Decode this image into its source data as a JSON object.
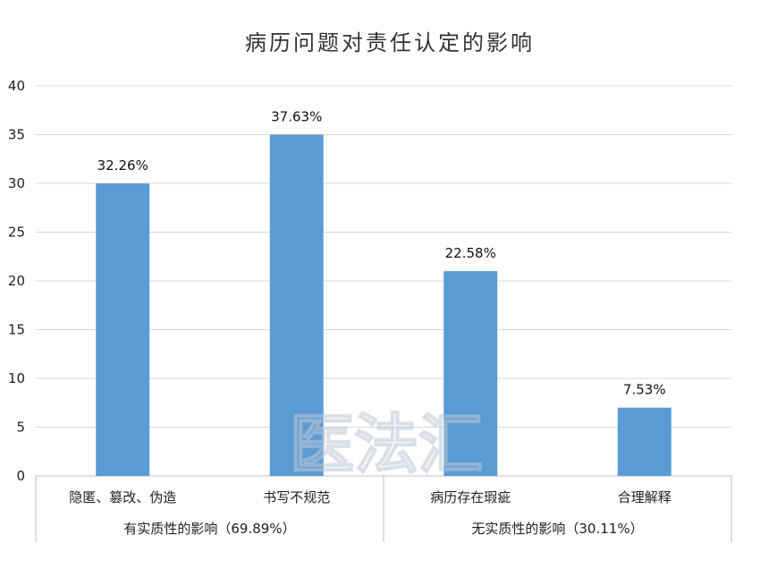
{
  "chart_data": {
    "type": "bar",
    "title": "病历问题对责任认定的影响",
    "categories": [
      "隐匿、篡改、伪造",
      "书写不规范",
      "病历存在瑕疵",
      "合理解释"
    ],
    "values": [
      30,
      35,
      21,
      7
    ],
    "data_labels": [
      "32.26%",
      "37.63%",
      "22.58%",
      "7.53%"
    ],
    "groups": [
      {
        "label": "有实质性的影响（69.89%）",
        "span": [
          0,
          1
        ]
      },
      {
        "label": "无实质性的影响（30.11%）",
        "span": [
          2,
          3
        ]
      }
    ],
    "ylim": [
      0,
      40
    ],
    "yticks": [
      0,
      5,
      10,
      15,
      20,
      25,
      30,
      35,
      40
    ],
    "grid": true,
    "legend": "none",
    "bar_color": "#5b9bd5"
  },
  "watermark": "医法汇"
}
